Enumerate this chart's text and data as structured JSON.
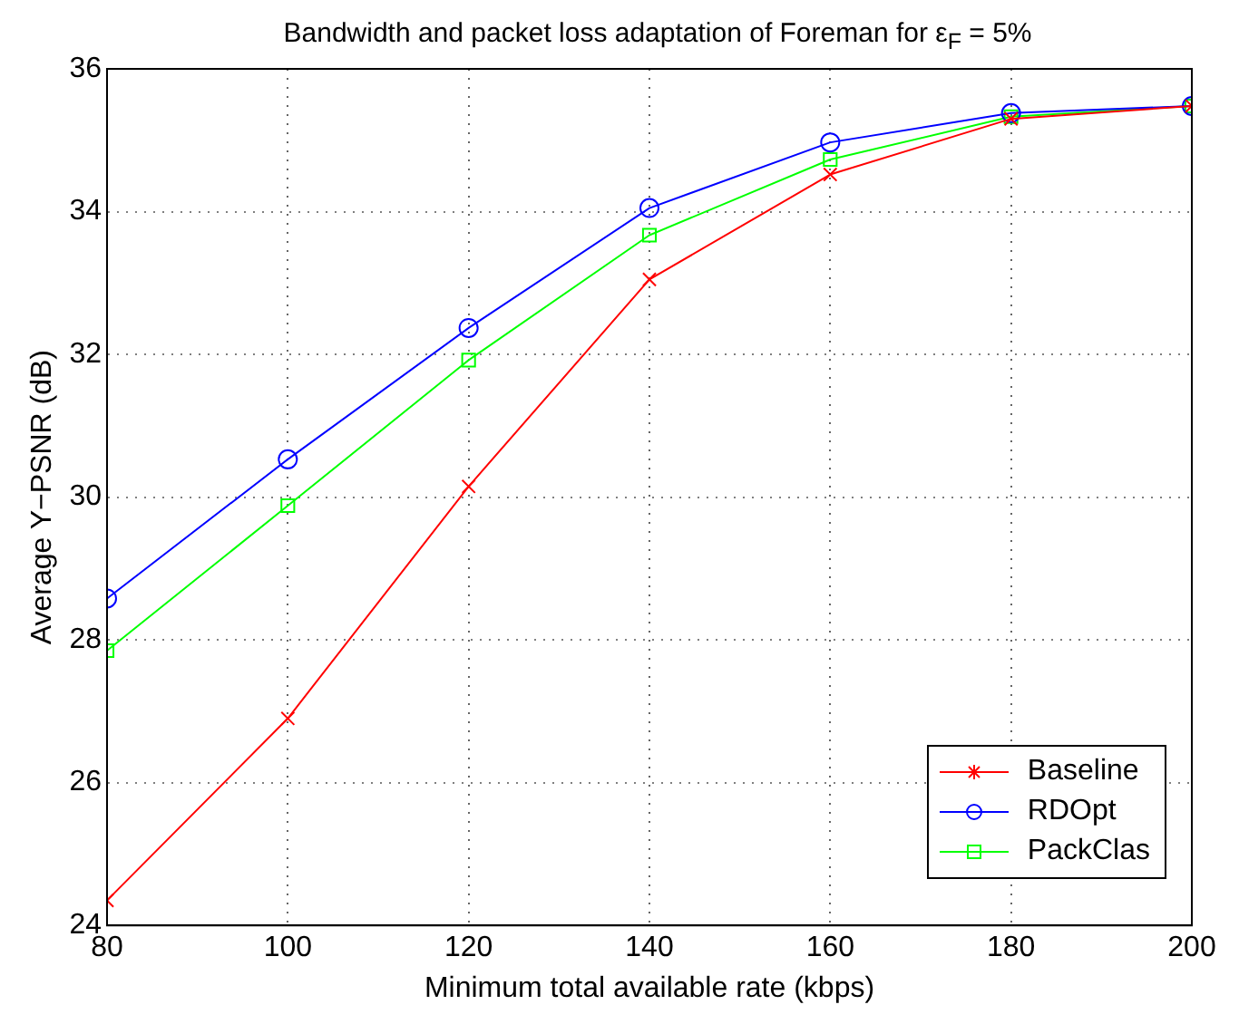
{
  "chart_data": {
    "type": "line",
    "title": "Bandwidth and packet loss adaptation of Foreman for ε$_{F}$ = 5%",
    "xlabel": "Minimum total available rate (kbps)",
    "ylabel": "Average Y−PSNR (dB)",
    "x": [
      80,
      100,
      120,
      140,
      160,
      180,
      200
    ],
    "series": [
      {
        "name": "Baseline",
        "color": "#ff0000",
        "marker": "cross",
        "values": [
          24.35,
          26.9,
          30.15,
          33.05,
          34.52,
          35.3,
          35.48
        ]
      },
      {
        "name": "RDOpt",
        "color": "#0000ff",
        "marker": "circle",
        "values": [
          28.58,
          30.53,
          32.37,
          34.05,
          34.97,
          35.38,
          35.48
        ]
      },
      {
        "name": "PackClas",
        "color": "#00ff00",
        "marker": "square",
        "values": [
          27.85,
          29.88,
          31.92,
          33.67,
          34.73,
          35.33,
          35.48
        ]
      }
    ],
    "xlim": [
      80,
      200
    ],
    "xticks": [
      80,
      100,
      120,
      140,
      160,
      180,
      200
    ],
    "ylim": [
      24,
      36
    ],
    "yticks": [
      24,
      26,
      28,
      30,
      32,
      34,
      36
    ],
    "grid": true,
    "legend": "bottom right",
    "line_style": "solid"
  }
}
